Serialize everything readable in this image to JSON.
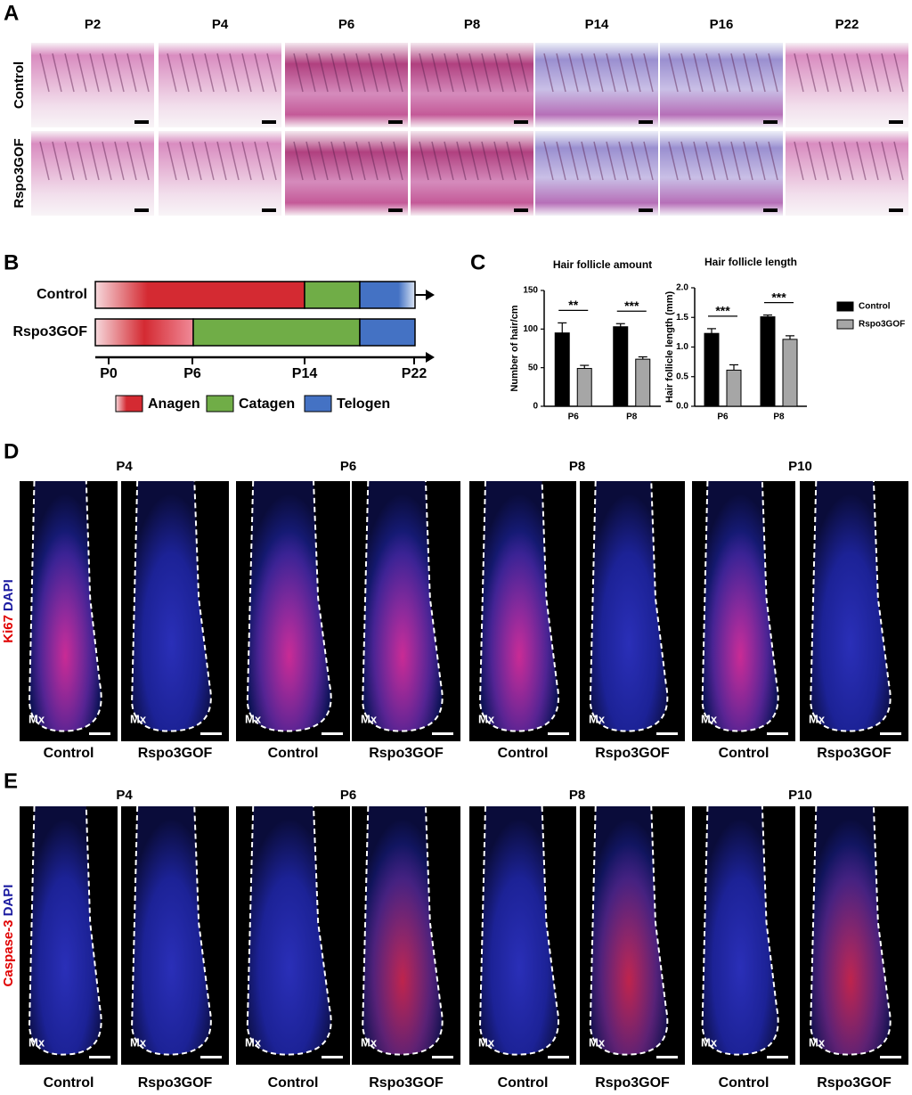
{
  "panel_a": {
    "label": "A",
    "columns": [
      "P2",
      "P4",
      "P6",
      "P8",
      "P14",
      "P16",
      "P22"
    ],
    "rows": [
      "Control",
      "Rspo3GOF"
    ]
  },
  "panel_b": {
    "label": "B",
    "rows": [
      "Control",
      "Rspo3GOF"
    ],
    "ticks": [
      "P0",
      "P6",
      "P14",
      "P22"
    ],
    "legend": [
      "Anagen",
      "Catagen",
      "Telogen"
    ]
  },
  "panel_c": {
    "label": "C"
  },
  "chart_data": [
    {
      "type": "bar",
      "title": "Hair follicle amount",
      "y_label": "Number of hair/cm",
      "categories": [
        "P6",
        "P8"
      ],
      "series": [
        {
          "color": "#000000",
          "values": [
            95,
            103
          ],
          "errors": [
            13,
            4
          ]
        },
        {
          "color": "#a6a6a6",
          "values": [
            49,
            61
          ],
          "errors": [
            4,
            3
          ]
        }
      ],
      "ylim": [
        0,
        150
      ],
      "yticks": [
        0,
        50,
        100,
        150
      ],
      "annotations": [
        {
          "text": "**",
          "category": 0
        },
        {
          "text": "***",
          "category": 1
        }
      ]
    },
    {
      "type": "bar",
      "title": "Hair follicle length",
      "y_label": "Hair follicle length (mm)",
      "categories": [
        "P6",
        "P8"
      ],
      "series": [
        {
          "name": "Control",
          "color": "#000000",
          "values": [
            1.23,
            1.51
          ],
          "errors": [
            0.08,
            0.03
          ]
        },
        {
          "name": "Rspo3GOF",
          "color": "#a6a6a6",
          "values": [
            0.61,
            1.13
          ],
          "errors": [
            0.09,
            0.06
          ]
        }
      ],
      "ylim": [
        0,
        2
      ],
      "yticks": [
        {
          "value": 0,
          "label": "0.0"
        },
        {
          "value": 0.5,
          "label": "0.5"
        },
        {
          "value": 1,
          "label": "1.0"
        },
        {
          "value": 1.5,
          "label": "1.5"
        },
        {
          "value": 2,
          "label": "2.0"
        }
      ],
      "legend": "right",
      "annotations": [
        {
          "text": "***",
          "category": 0
        },
        {
          "text": "***",
          "category": 1
        }
      ]
    }
  ],
  "panel_d": {
    "label": "D",
    "stain": [
      "Ki67",
      "DAPI"
    ],
    "columns": [
      "P4",
      "P6",
      "P8",
      "P10"
    ],
    "images": [
      {
        "marker": "Mx",
        "caption": "Control"
      },
      {
        "marker": "Mx",
        "caption": "Rspo3GOF"
      },
      {
        "marker": "Mx",
        "caption": "Control"
      },
      {
        "marker": "Mx",
        "caption": "Rspo3GOF"
      },
      {
        "marker": "Mx",
        "caption": "Control"
      },
      {
        "marker": "Mx",
        "caption": "Rspo3GOF"
      },
      {
        "marker": "Mx",
        "caption": "Control"
      },
      {
        "marker": "Mx",
        "caption": "Rspo3GOF"
      }
    ]
  },
  "panel_e": {
    "label": "E",
    "stain": [
      "Caspase-3",
      "DAPI"
    ],
    "columns": [
      "P4",
      "P6",
      "P8",
      "P10"
    ],
    "images": [
      {
        "marker": "Mx",
        "caption": "Control"
      },
      {
        "marker": "Mx",
        "caption": "Rspo3GOF"
      },
      {
        "marker": "Mx",
        "caption": "Control"
      },
      {
        "marker": "Mx",
        "caption": "Rspo3GOF"
      },
      {
        "marker": "Mx",
        "caption": "Control"
      },
      {
        "marker": "Mx",
        "caption": "Rspo3GOF"
      },
      {
        "marker": "Mx",
        "caption": "Control"
      },
      {
        "marker": "Mx",
        "caption": "Rspo3GOF"
      }
    ]
  }
}
